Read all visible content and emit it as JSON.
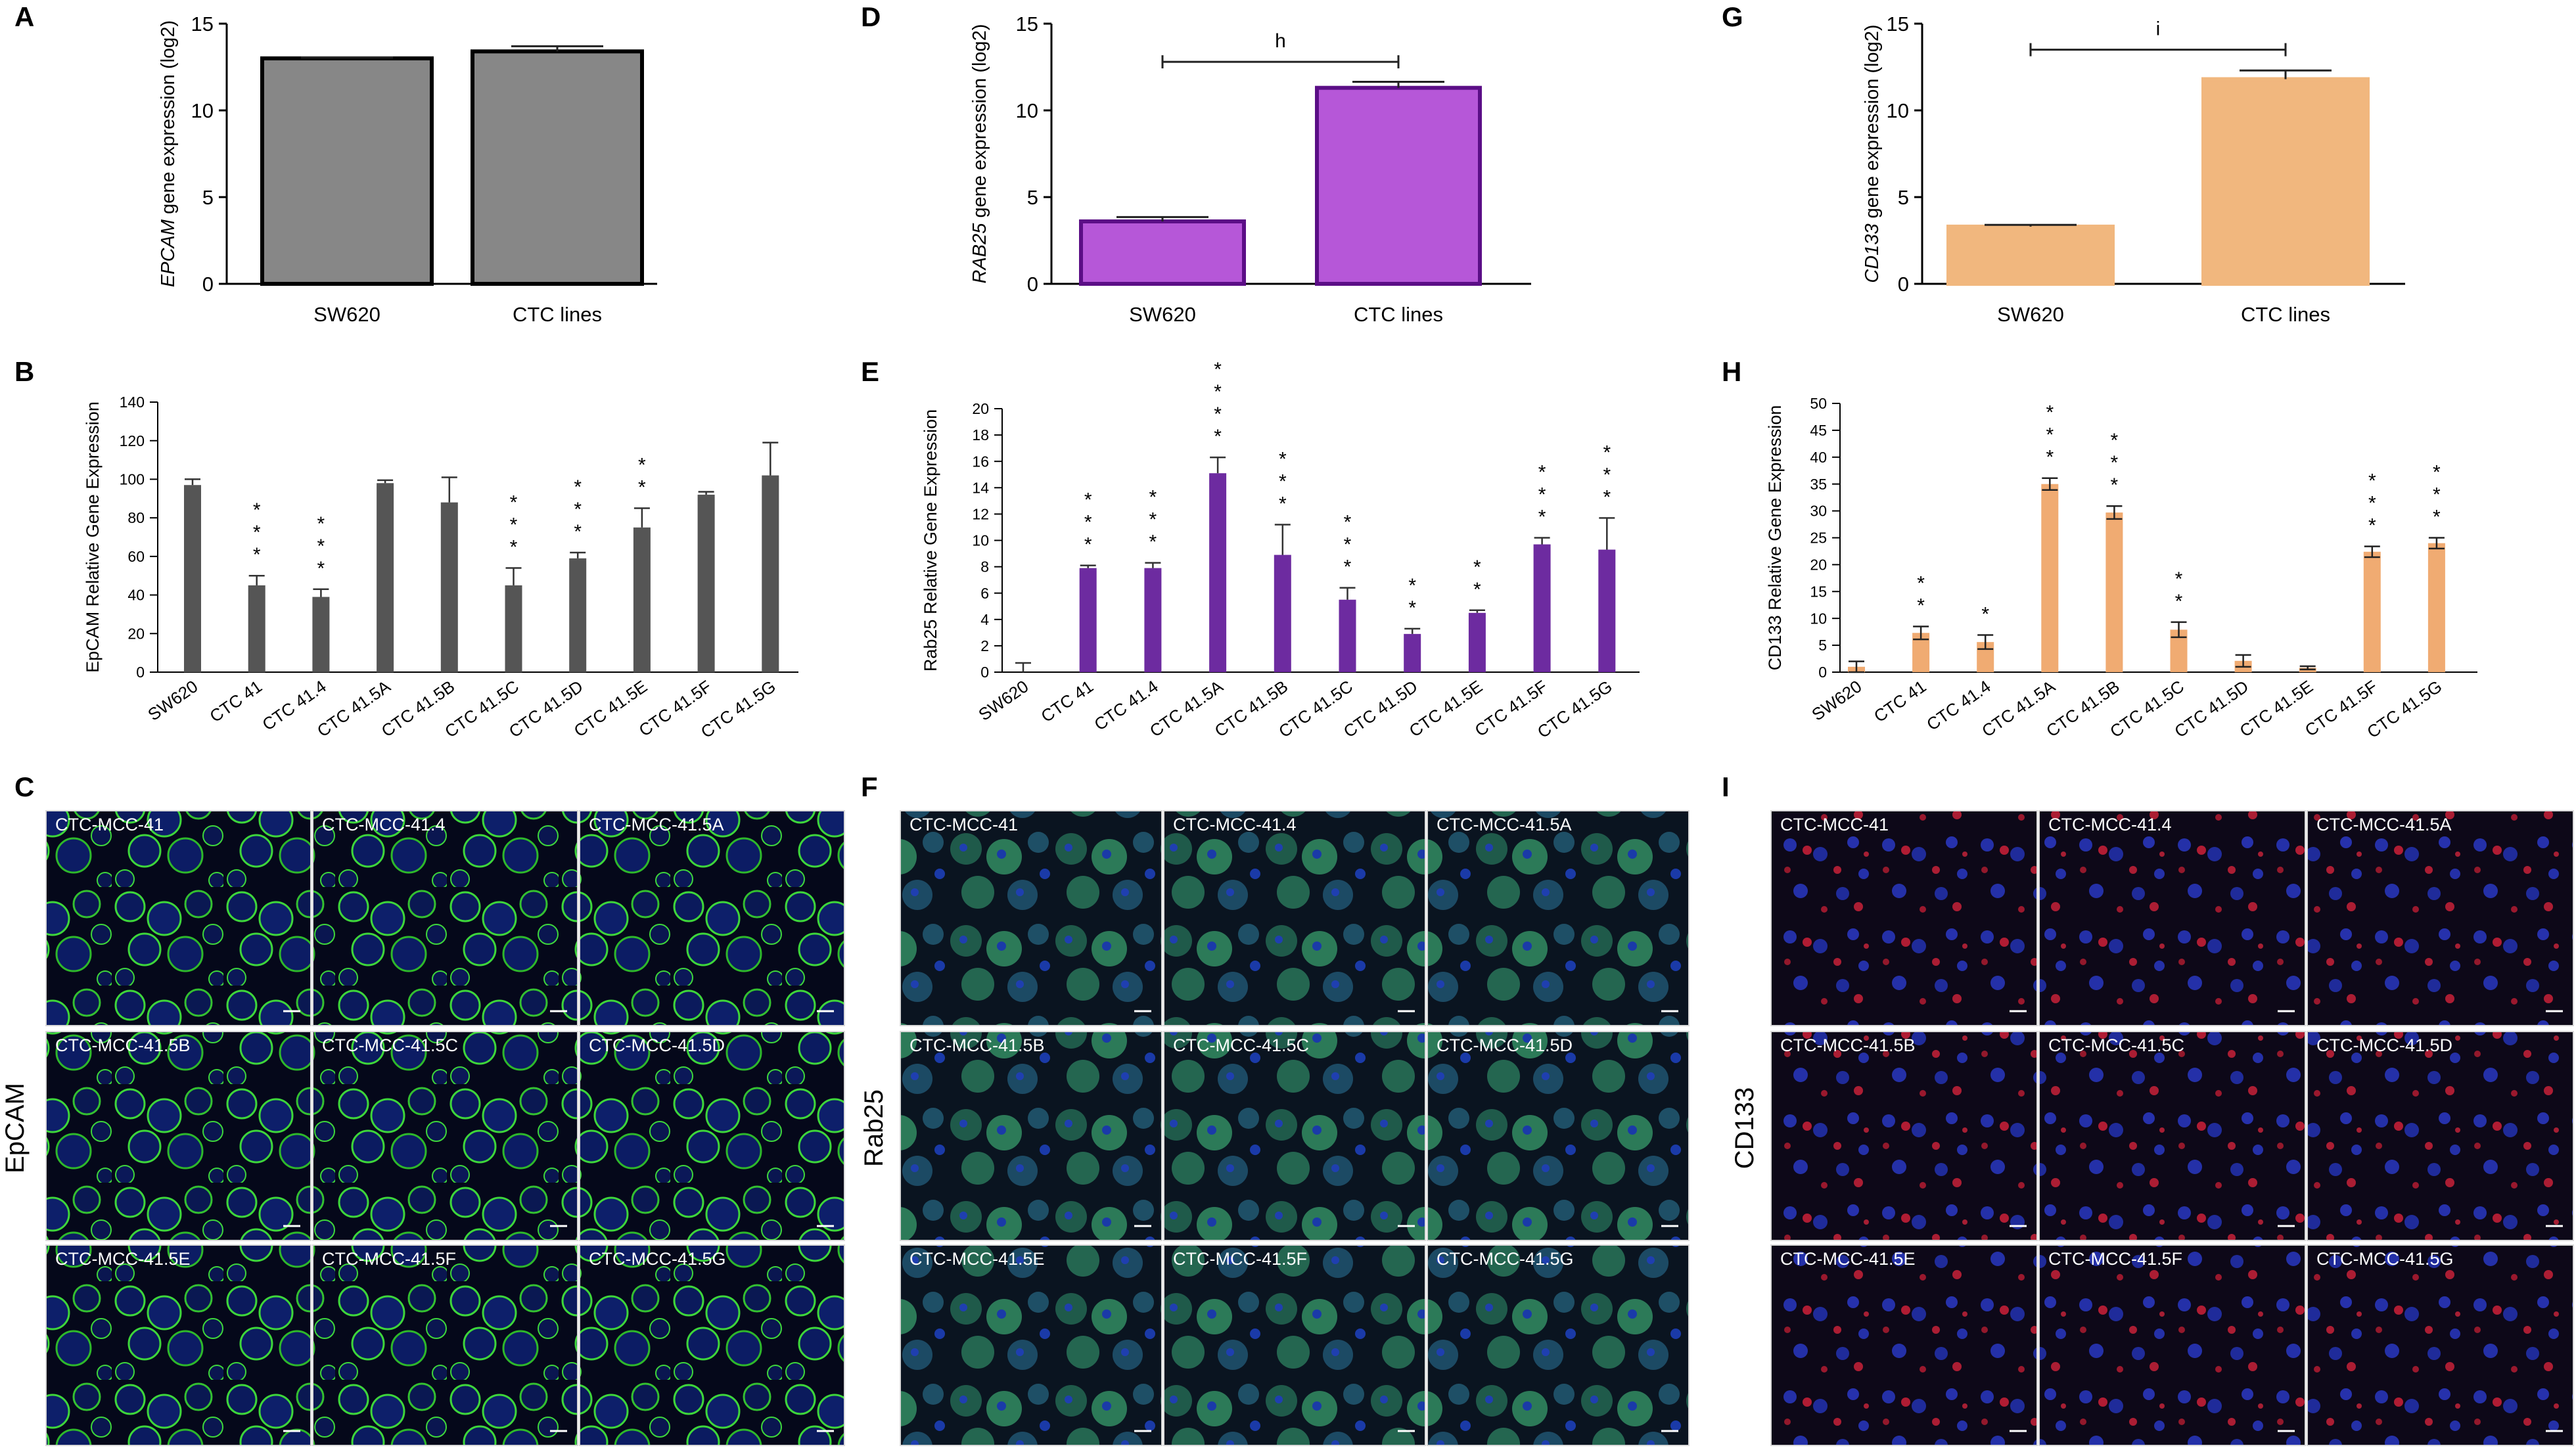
{
  "panel_labels": {
    "A": "A",
    "B": "B",
    "C": "C",
    "D": "D",
    "E": "E",
    "F": "F",
    "G": "G",
    "H": "H",
    "I": "I"
  },
  "microscopy": [
    {
      "panel": "C",
      "stain": "EpCAM",
      "color": "#3ed63a",
      "captions": [
        "CTC-MCC-41",
        "CTC-MCC-41.4",
        "CTC-MCC-41.5A",
        "CTC-MCC-41.5B",
        "CTC-MCC-41.5C",
        "CTC-MCC-41.5D",
        "CTC-MCC-41.5E",
        "CTC-MCC-41.5F",
        "CTC-MCC-41.5G"
      ]
    },
    {
      "panel": "F",
      "stain": "Rab25",
      "color": "#2fbf5a",
      "captions": [
        "CTC-MCC-41",
        "CTC-MCC-41.4",
        "CTC-MCC-41.5A",
        "CTC-MCC-41.5B",
        "CTC-MCC-41.5C",
        "CTC-MCC-41.5D",
        "CTC-MCC-41.5E",
        "CTC-MCC-41.5F",
        "CTC-MCC-41.5G"
      ]
    },
    {
      "panel": "I",
      "stain": "CD133",
      "color": "#e8202a",
      "captions": [
        "CTC-MCC-41",
        "CTC-MCC-41.4",
        "CTC-MCC-41.5A",
        "CTC-MCC-41.5B",
        "CTC-MCC-41.5C",
        "CTC-MCC-41.5D",
        "CTC-MCC-41.5E",
        "CTC-MCC-41.5F",
        "CTC-MCC-41.5G"
      ]
    }
  ],
  "chart_data": [
    {
      "panel": "A",
      "type": "bar",
      "ylabel_italic": "EPCAM",
      "ylabel_rest": " gene expression (log2)",
      "categories": [
        "SW620",
        "CTC lines"
      ],
      "values": [
        13.0,
        13.4
      ],
      "errors": [
        0.05,
        0.3
      ],
      "ylim": [
        0,
        15
      ],
      "yticks": [
        0,
        5,
        10,
        15
      ],
      "fill": "#878787",
      "stroke": "#000000",
      "sig": null
    },
    {
      "panel": "D",
      "type": "bar",
      "ylabel_italic": "RAB25",
      "ylabel_rest": " gene expression (log2)",
      "categories": [
        "SW620",
        "CTC lines"
      ],
      "values": [
        3.6,
        11.3
      ],
      "errors": [
        0.25,
        0.35
      ],
      "ylim": [
        0,
        15
      ],
      "yticks": [
        0,
        5,
        10,
        15
      ],
      "fill": "#b657d8",
      "stroke": "#5b0e86",
      "sig": {
        "label": "h",
        "y": 12.8
      }
    },
    {
      "panel": "G",
      "type": "bar",
      "ylabel_italic": "CD133",
      "ylabel_rest": " gene expression (log2)",
      "categories": [
        "SW620",
        "CTC lines"
      ],
      "values": [
        3.3,
        11.8
      ],
      "errors": [
        0.1,
        0.5
      ],
      "ylim": [
        0,
        15
      ],
      "yticks": [
        0,
        5,
        10,
        15
      ],
      "fill": "#f1b77e",
      "stroke": "#f1b77e",
      "sig": {
        "label": "i",
        "y": 13.5
      }
    },
    {
      "panel": "B",
      "type": "bar",
      "ylabel": "EpCAM Relative Gene Expression",
      "categories": [
        "SW620",
        "CTC 41",
        "CTC 41.4",
        "CTC 41.5A",
        "CTC 41.5B",
        "CTC 41.5C",
        "CTC 41.5D",
        "CTC 41.5E",
        "CTC 41.5F",
        "CTC 41.5G"
      ],
      "values": [
        97,
        45,
        39,
        98,
        88,
        45,
        59,
        75,
        92,
        102
      ],
      "errors": [
        3,
        5,
        4,
        1.5,
        13,
        9,
        3,
        10,
        1.5,
        17
      ],
      "stars": [
        0,
        3,
        3,
        0,
        0,
        3,
        3,
        2,
        0,
        0
      ],
      "ylim": [
        0,
        140
      ],
      "yticks": [
        0,
        20,
        40,
        60,
        80,
        100,
        120,
        140
      ],
      "fill": "#555555"
    },
    {
      "panel": "E",
      "type": "bar",
      "ylabel": "Rab25 Relative Gene Expression",
      "categories": [
        "SW620",
        "CTC 41",
        "CTC 41.4",
        "CTC 41.5A",
        "CTC 41.5B",
        "CTC 41.5C",
        "CTC 41.5D",
        "CTC 41.5E",
        "CTC 41.5F",
        "CTC 41.5G"
      ],
      "values": [
        0,
        7.9,
        7.9,
        15.1,
        8.9,
        5.5,
        2.9,
        4.5,
        9.7,
        9.3
      ],
      "errors": [
        0.7,
        0.2,
        0.4,
        1.2,
        2.3,
        0.9,
        0.4,
        0.2,
        0.5,
        2.4
      ],
      "stars": [
        0,
        3,
        3,
        4,
        3,
        3,
        2,
        2,
        3,
        3
      ],
      "ylim": [
        0,
        20
      ],
      "yticks": [
        0,
        2,
        4,
        6,
        8,
        10,
        12,
        14,
        16,
        18,
        20
      ],
      "fill": "#6d2ba0"
    },
    {
      "panel": "H",
      "type": "bar",
      "ylabel": "CD133 Relative Gene Expression",
      "categories": [
        "SW620",
        "CTC 41",
        "CTC 41.4",
        "CTC 41.5A",
        "CTC 41.5B",
        "CTC 41.5C",
        "CTC 41.5D",
        "CTC 41.5E",
        "CTC 41.5F",
        "CTC 41.5G"
      ],
      "values": [
        1,
        7.3,
        5.6,
        35,
        29.7,
        7.9,
        2.1,
        0.8,
        22.4,
        24
      ],
      "errors": [
        1,
        1.2,
        1.3,
        1.1,
        1.2,
        1.4,
        1.1,
        0.3,
        1,
        1
      ],
      "stars": [
        0,
        2,
        1,
        3,
        3,
        2,
        0,
        0,
        3,
        3
      ],
      "ylim": [
        0,
        50
      ],
      "yticks": [
        0,
        5,
        10,
        15,
        20,
        25,
        30,
        35,
        40,
        45,
        50
      ],
      "fill": "#f0ab72"
    }
  ]
}
